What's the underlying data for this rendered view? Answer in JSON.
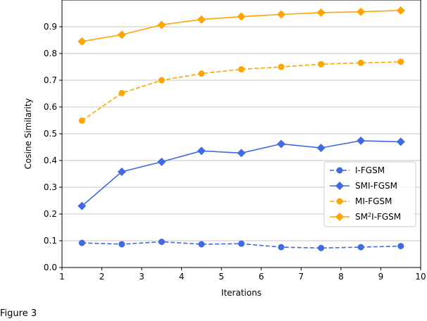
{
  "chart_data": {
    "type": "line",
    "title": "",
    "xlabel": "Iterations",
    "ylabel": "Cosine Similarity",
    "xlim": [
      1,
      10
    ],
    "ylim": [
      0,
      1
    ],
    "xticks": [
      "1",
      "2",
      "3",
      "4",
      "5",
      "6",
      "7",
      "8",
      "9",
      "10"
    ],
    "yticks": [
      "0.0",
      "0.1",
      "0.2",
      "0.3",
      "0.4",
      "0.5",
      "0.6",
      "0.7",
      "0.8",
      "0.9"
    ],
    "grid": "horizontal",
    "legend_position": "center-right",
    "x": [
      1.5,
      2.5,
      3.5,
      4.5,
      5.5,
      6.5,
      7.5,
      8.5,
      9.5
    ],
    "series": [
      {
        "name": "I-FGSM",
        "color": "#4169e1",
        "style": "dashed",
        "marker": "circle",
        "values": [
          0.092,
          0.087,
          0.096,
          0.087,
          0.089,
          0.076,
          0.073,
          0.076,
          0.08
        ]
      },
      {
        "name": "SMI-FGSM",
        "color": "#4169e1",
        "style": "solid",
        "marker": "diamond",
        "values": [
          0.23,
          0.358,
          0.395,
          0.436,
          0.428,
          0.462,
          0.447,
          0.474,
          0.47
        ]
      },
      {
        "name": "MI-FGSM",
        "color": "#ffa500",
        "style": "dashed",
        "marker": "circle",
        "values": [
          0.549,
          0.652,
          0.7,
          0.725,
          0.741,
          0.75,
          0.76,
          0.765,
          0.769
        ]
      },
      {
        "name": "SM2I-FGSM",
        "name_prefix": "SM",
        "name_sup": "2",
        "name_suffix": "I-FGSM",
        "color": "#ffa500",
        "style": "solid",
        "marker": "diamond",
        "values": [
          0.845,
          0.87,
          0.907,
          0.927,
          0.938,
          0.946,
          0.953,
          0.956,
          0.961
        ]
      }
    ]
  },
  "caption": "Figure 3"
}
